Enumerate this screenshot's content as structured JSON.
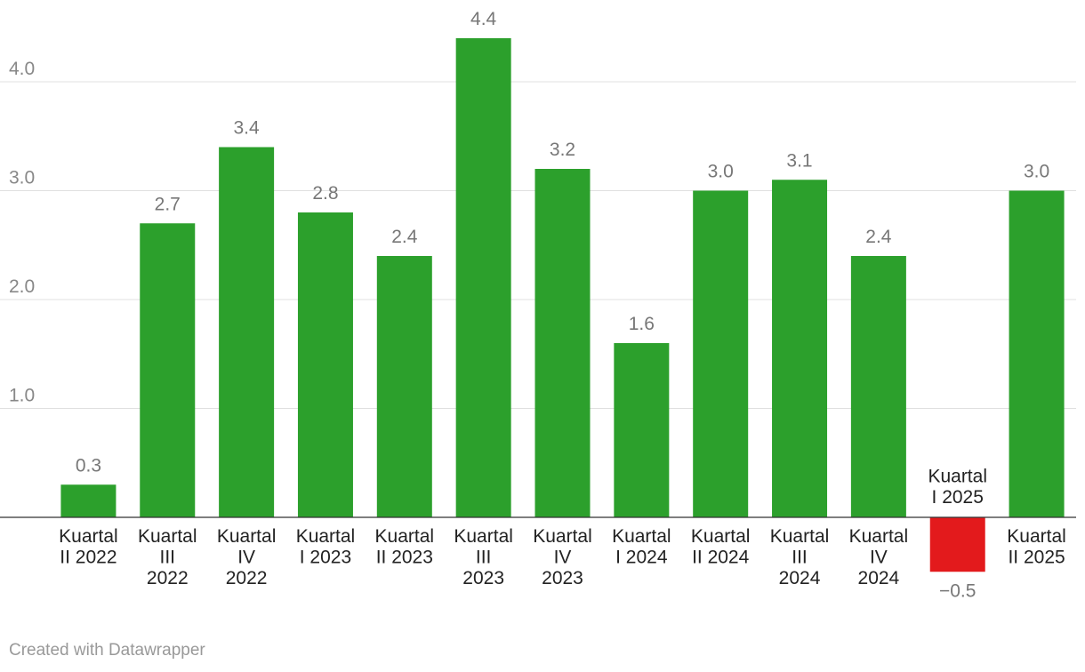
{
  "chart_data": {
    "type": "bar",
    "categories": [
      "Kuartal II 2022",
      "Kuartal III 2022",
      "Kuartal IV 2022",
      "Kuartal I 2023",
      "Kuartal II 2023",
      "Kuartal III 2023",
      "Kuartal IV 2023",
      "Kuartal I 2024",
      "Kuartal II 2024",
      "Kuartal III 2024",
      "Kuartal IV 2024",
      "Kuartal I 2025",
      "Kuartal II 2025"
    ],
    "category_lines": [
      [
        "Kuartal",
        "II 2022"
      ],
      [
        "Kuartal",
        "III",
        "2022"
      ],
      [
        "Kuartal",
        "IV",
        "2022"
      ],
      [
        "Kuartal",
        "I 2023"
      ],
      [
        "Kuartal",
        "II 2023"
      ],
      [
        "Kuartal",
        "III",
        "2023"
      ],
      [
        "Kuartal",
        "IV",
        "2023"
      ],
      [
        "Kuartal",
        "I 2024"
      ],
      [
        "Kuartal",
        "II 2024"
      ],
      [
        "Kuartal",
        "III",
        "2024"
      ],
      [
        "Kuartal",
        "IV",
        "2024"
      ],
      [
        "Kuartal",
        "I 2025"
      ],
      [
        "Kuartal",
        "II 2025"
      ]
    ],
    "values": [
      0.3,
      2.7,
      3.4,
      2.8,
      2.4,
      4.4,
      3.2,
      1.6,
      3.0,
      3.1,
      2.4,
      -0.5,
      3.0
    ],
    "value_labels": [
      "0.3",
      "2.7",
      "3.4",
      "2.8",
      "2.4",
      "4.4",
      "3.2",
      "1.6",
      "3.0",
      "3.1",
      "2.4",
      "−0.5",
      "3.0"
    ],
    "y_ticks": [
      1.0,
      2.0,
      3.0,
      4.0
    ],
    "y_tick_labels": [
      "1.0",
      "2.0",
      "3.0",
      "4.0"
    ],
    "ylim": [
      -0.5,
      4.4
    ],
    "grid": true,
    "colors": {
      "positive": "#2ca02c",
      "negative": "#e31a1c"
    },
    "title": "",
    "xlabel": "",
    "ylabel": ""
  },
  "footer": {
    "credit": "Created with Datawrapper"
  }
}
